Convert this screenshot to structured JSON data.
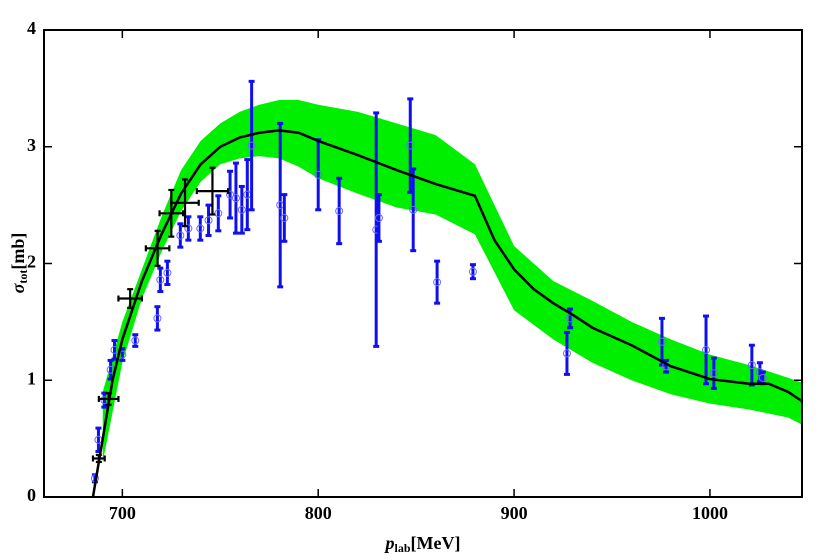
{
  "chart_data": {
    "type": "scatter",
    "x_label": {
      "symbol": "p",
      "subscript": "lab",
      "unit": "[MeV]"
    },
    "y_label": {
      "symbol": "σ",
      "subscript": "tot",
      "unit": "[mb]"
    },
    "xlim": [
      660,
      1047
    ],
    "ylim": [
      0,
      4
    ],
    "xticks": [
      700,
      800,
      900,
      1000
    ],
    "yticks": [
      0,
      1,
      2,
      3,
      4
    ],
    "band": {
      "color": "#00ee00",
      "x": [
        690,
        700,
        710,
        720,
        730,
        740,
        750,
        760,
        770,
        780,
        790,
        800,
        820,
        840,
        860,
        880,
        900,
        920,
        940,
        960,
        980,
        1000,
        1020,
        1040,
        1047
      ],
      "upper": [
        0.9,
        1.5,
        1.95,
        2.4,
        2.8,
        3.05,
        3.2,
        3.3,
        3.36,
        3.4,
        3.4,
        3.36,
        3.3,
        3.2,
        3.1,
        2.85,
        2.15,
        1.85,
        1.68,
        1.5,
        1.35,
        1.22,
        1.13,
        1.02,
        0.98
      ],
      "lower": [
        0.3,
        1.15,
        1.7,
        2.1,
        2.45,
        2.7,
        2.85,
        2.9,
        2.92,
        2.9,
        2.83,
        2.73,
        2.6,
        2.48,
        2.42,
        2.25,
        1.6,
        1.35,
        1.15,
        1.0,
        0.88,
        0.8,
        0.75,
        0.68,
        0.62
      ]
    },
    "curve": {
      "color": "#000000",
      "x": [
        685,
        690,
        695,
        700,
        710,
        720,
        730,
        740,
        750,
        760,
        770,
        780,
        790,
        800,
        820,
        840,
        860,
        880,
        890,
        900,
        910,
        920,
        930,
        940,
        960,
        980,
        1000,
        1020,
        1030,
        1040,
        1047
      ],
      "y": [
        0,
        0.5,
        1.0,
        1.35,
        1.85,
        2.25,
        2.6,
        2.85,
        3.0,
        3.08,
        3.12,
        3.14,
        3.12,
        3.05,
        2.93,
        2.8,
        2.68,
        2.58,
        2.2,
        1.95,
        1.78,
        1.66,
        1.56,
        1.45,
        1.3,
        1.12,
        1.01,
        0.97,
        0.97,
        0.9,
        0.82
      ]
    },
    "datasets": [
      {
        "color": "#1010ee",
        "x": [
          686,
          687.8,
          690.8,
          694,
          696,
          700,
          706.6,
          717.9,
          719.4,
          723,
          729.6,
          733.7,
          739.8,
          744,
          749,
          755,
          758,
          761,
          763.8,
          766,
          780.6,
          782.7,
          800,
          810.7,
          829.6,
          831,
          847,
          848.5,
          860.7,
          879,
          927,
          928.6,
          975.5,
          977.6,
          998,
          1002,
          1021.4,
          1025.5,
          1027
        ],
        "y": [
          0.16,
          0.49,
          0.83,
          1.09,
          1.26,
          1.22,
          1.34,
          1.53,
          1.86,
          1.92,
          2.24,
          2.3,
          2.3,
          2.37,
          2.43,
          2.59,
          2.56,
          2.46,
          2.59,
          3.01,
          2.5,
          2.39,
          2.76,
          2.45,
          2.29,
          2.39,
          3.01,
          2.46,
          1.84,
          1.93,
          1.23,
          1.53,
          1.33,
          1.12,
          1.26,
          1.06,
          1.13,
          1.07,
          1.02
        ],
        "yerr": [
          0.03,
          0.1,
          0.06,
          0.08,
          0.08,
          0.05,
          0.05,
          0.1,
          0.1,
          0.1,
          0.1,
          0.1,
          0.1,
          0.13,
          0.15,
          0.2,
          0.3,
          0.2,
          0.3,
          0.55,
          0.7,
          0.2,
          0.3,
          0.28,
          1.0,
          0.2,
          0.4,
          0.35,
          0.18,
          0.06,
          0.18,
          0.08,
          0.2,
          0.05,
          0.29,
          0.13,
          0.17,
          0.08,
          0.05
        ]
      },
      {
        "color": "#000000",
        "x": [
          688,
          693,
          704,
          718,
          725,
          732,
          746
        ],
        "y": [
          0.33,
          0.84,
          1.7,
          2.13,
          2.43,
          2.52,
          2.62
        ],
        "xerr": [
          3,
          5,
          6,
          6,
          6,
          7,
          8
        ],
        "yerr": [
          0.03,
          0.05,
          0.08,
          0.15,
          0.2,
          0.2,
          0.2
        ]
      }
    ]
  }
}
